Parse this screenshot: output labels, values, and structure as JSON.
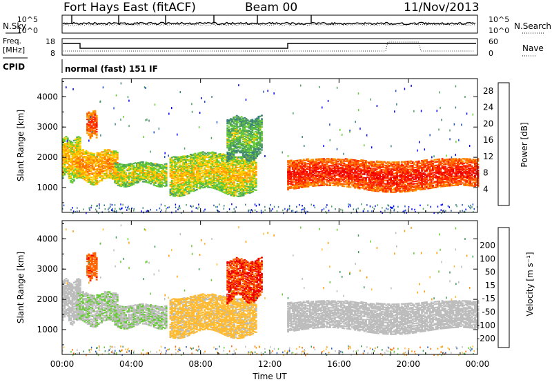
{
  "header": {
    "station": "Fort Hays East (fitACF)",
    "beam": "Beam 00",
    "date": "11/Nov/2013"
  },
  "top_panels": {
    "nsky_label": "N.Sky",
    "nsearch_label": "N.Search",
    "noise_ticks_left": [
      "10^5",
      "10^0"
    ],
    "noise_ticks_right": [
      "10^5",
      "10^0"
    ],
    "freq_label_1": "Freq.",
    "freq_label_2": "[MHz]",
    "freq_ticks": [
      "18",
      "8"
    ],
    "nave_label": "Nave",
    "nave_ticks": [
      "60",
      "0"
    ],
    "cpid_label": "CPID",
    "cpid_value": "normal (fast) 151 IF"
  },
  "colors": {
    "power_scale": [
      "#0000ff",
      "#1f4fbf",
      "#3c7f7f",
      "#4fa060",
      "#66cc33",
      "#ffcc00",
      "#ff9900",
      "#ff6600",
      "#ff2200",
      "#ee0000"
    ],
    "velocity_scale": [
      "#ee0000",
      "#ff6600",
      "#ff9900",
      "#ffbb33",
      "#bdbdbd",
      "#bdbdbd",
      "#66cc33",
      "#3c9a5a",
      "#2a5fbf",
      "#1a2fdd"
    ]
  },
  "chart_data": [
    {
      "type": "heatmap",
      "panel": "power",
      "ylabel": "Slant Range [km]",
      "ylim": [
        180,
        4600
      ],
      "yticks": [
        "1000",
        "2000",
        "3000",
        "4000"
      ],
      "xlabel": "",
      "colorbar_label": "Power [dB]",
      "colorbar_ticks": [
        "4",
        "8",
        "12",
        "16",
        "20",
        "24",
        "28"
      ],
      "colorbar_range": [
        0,
        30
      ],
      "echo_regions": [
        {
          "t_start": 0.0,
          "t_end": 1.0,
          "r_low": 1300,
          "r_high": 2600,
          "power": 14
        },
        {
          "t_start": 0.8,
          "t_end": 3.2,
          "r_low": 1200,
          "r_high": 2200,
          "power": 16
        },
        {
          "t_start": 1.4,
          "t_end": 2.0,
          "r_low": 2700,
          "r_high": 3500,
          "power": 20
        },
        {
          "t_start": 3.0,
          "t_end": 6.0,
          "r_low": 1100,
          "r_high": 1800,
          "power": 12
        },
        {
          "t_start": 6.2,
          "t_end": 11.2,
          "r_low": 850,
          "r_high": 2100,
          "power": 13
        },
        {
          "t_start": 9.5,
          "t_end": 11.5,
          "r_low": 2000,
          "r_high": 3300,
          "power": 9
        },
        {
          "t_start": 13.0,
          "t_end": 24.0,
          "r_low": 950,
          "r_high": 1900,
          "power": 22
        }
      ]
    },
    {
      "type": "heatmap",
      "panel": "velocity",
      "ylabel": "Slant Range [km]",
      "ylim": [
        180,
        4600
      ],
      "yticks": [
        "1000",
        "2000",
        "3000",
        "4000"
      ],
      "xlabel": "Time UT",
      "xticks": [
        "00:00",
        "04:00",
        "08:00",
        "12:00",
        "16:00",
        "20:00",
        "00:00"
      ],
      "xlim": [
        0,
        24
      ],
      "colorbar_label": "Velocity [m s⁻¹]",
      "colorbar_ticks": [
        "200",
        "100",
        "50",
        "15",
        "-15",
        "-50",
        "-100",
        "-200"
      ],
      "colorbar_range": [
        -250,
        250
      ],
      "echo_regions": [
        {
          "t_start": 0.0,
          "t_end": 1.0,
          "r_low": 1300,
          "r_high": 2600,
          "velocity": 0
        },
        {
          "t_start": 0.8,
          "t_end": 3.2,
          "r_low": 1200,
          "r_high": 2200,
          "velocity": 40
        },
        {
          "t_start": 1.4,
          "t_end": 2.0,
          "r_low": 2700,
          "r_high": 3500,
          "velocity": -180
        },
        {
          "t_start": 3.0,
          "t_end": 6.0,
          "r_low": 1100,
          "r_high": 1800,
          "velocity": 40
        },
        {
          "t_start": 6.2,
          "t_end": 11.2,
          "r_low": 850,
          "r_high": 2100,
          "velocity": -70
        },
        {
          "t_start": 9.5,
          "t_end": 11.5,
          "r_low": 2000,
          "r_high": 3300,
          "velocity": -200
        },
        {
          "t_start": 13.0,
          "t_end": 24.0,
          "r_low": 950,
          "r_high": 1900,
          "velocity": 0
        }
      ]
    }
  ]
}
